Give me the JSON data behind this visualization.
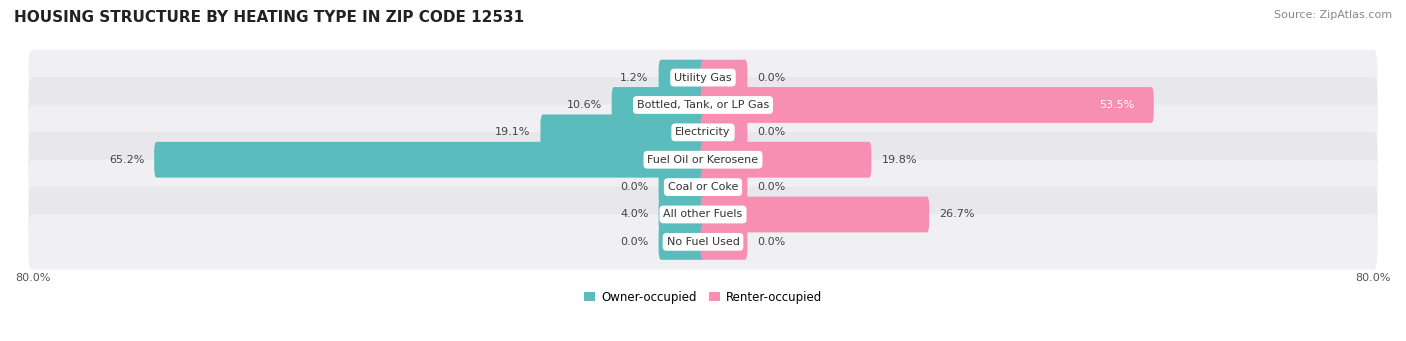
{
  "title": "HOUSING STRUCTURE BY HEATING TYPE IN ZIP CODE 12531",
  "source": "Source: ZipAtlas.com",
  "categories": [
    "Utility Gas",
    "Bottled, Tank, or LP Gas",
    "Electricity",
    "Fuel Oil or Kerosene",
    "Coal or Coke",
    "All other Fuels",
    "No Fuel Used"
  ],
  "owner_values": [
    1.2,
    10.6,
    19.1,
    65.2,
    0.0,
    4.0,
    0.0
  ],
  "renter_values": [
    0.0,
    53.5,
    0.0,
    19.8,
    0.0,
    26.7,
    0.0
  ],
  "owner_color": "#5bbcbd",
  "renter_color": "#f78fb3",
  "owner_label": "Owner-occupied",
  "renter_label": "Renter-occupied",
  "axis_min": -80.0,
  "axis_max": 80.0,
  "row_bg_even": "#f0f0f2",
  "row_bg_odd": "#e8e8ec",
  "title_fontsize": 11,
  "source_fontsize": 8,
  "val_label_fontsize": 8,
  "category_fontsize": 8,
  "legend_fontsize": 8.5,
  "stub_size": 5.0
}
